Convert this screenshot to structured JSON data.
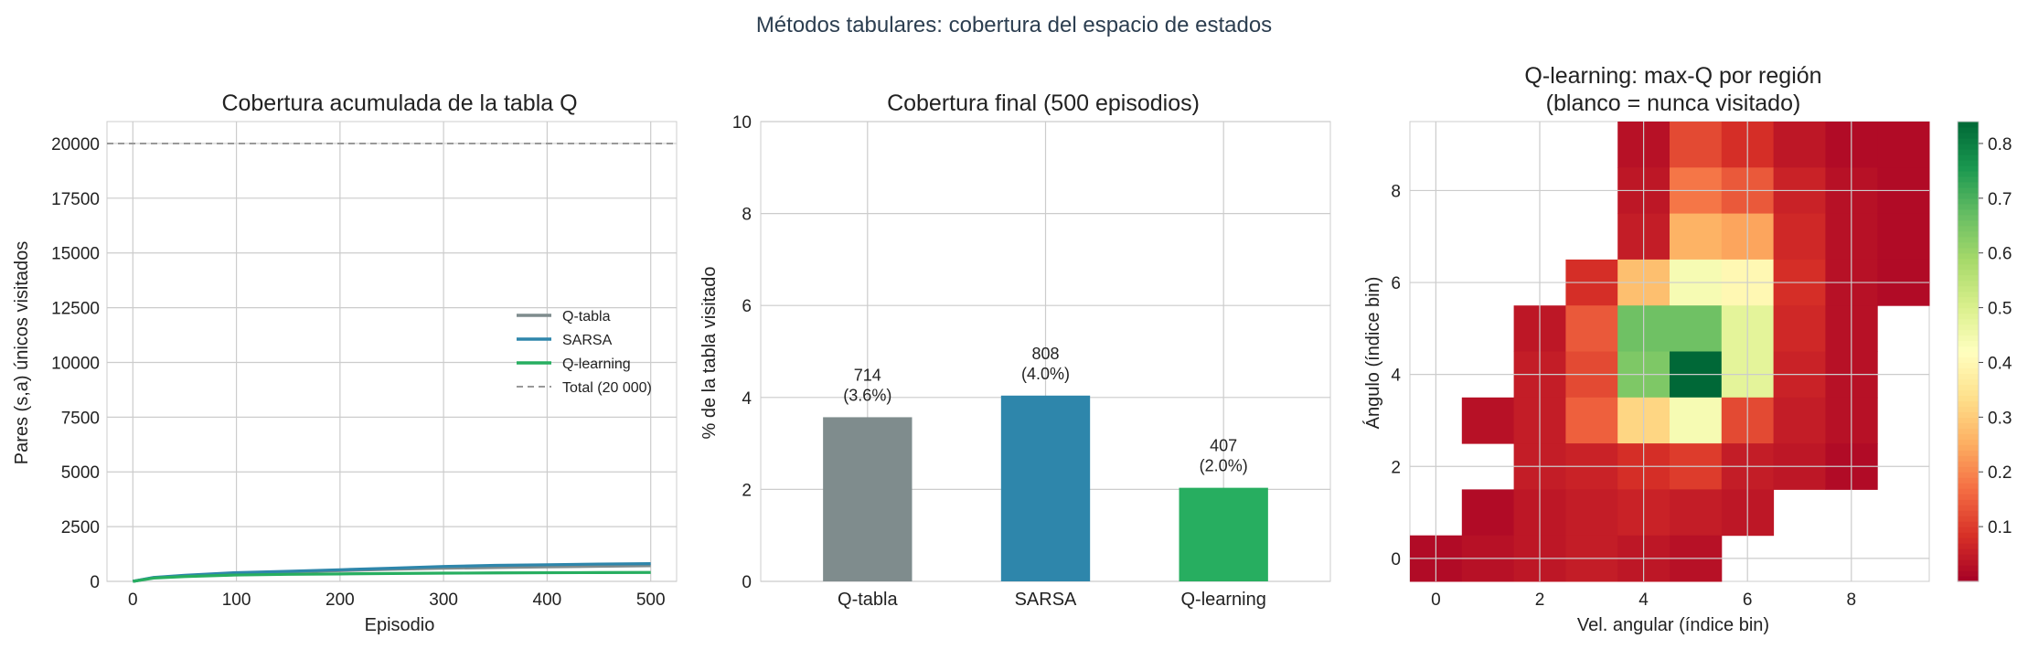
{
  "suptitle": "Métodos tabulares: cobertura del espacio de estados",
  "colors": {
    "qtabla": "#7f8c8d",
    "sarsa": "#2e86ab",
    "qlearning": "#27ae60",
    "total_line": "#999999",
    "grid": "#cccccc",
    "title_text": "#2c3e50"
  },
  "chart_data": [
    {
      "type": "line",
      "title": "Cobertura acumulada de la tabla Q",
      "xlabel": "Episodio",
      "ylabel": "Pares (s,a) únicos visitados",
      "xlim": [
        -25,
        525
      ],
      "ylim": [
        0,
        21000
      ],
      "x_ticks": [
        0,
        100,
        200,
        300,
        400,
        500
      ],
      "y_ticks": [
        0,
        2500,
        5000,
        7500,
        10000,
        12500,
        15000,
        17500,
        20000
      ],
      "grid": true,
      "legend_position": "center-right",
      "series": [
        {
          "name": "Q-tabla",
          "color": "#7f8c8d",
          "x": [
            0,
            20,
            50,
            100,
            150,
            200,
            250,
            300,
            350,
            400,
            450,
            500
          ],
          "y": [
            0,
            170,
            260,
            380,
            430,
            490,
            550,
            600,
            630,
            660,
            690,
            714
          ]
        },
        {
          "name": "SARSA",
          "color": "#2e86ab",
          "x": [
            0,
            20,
            50,
            100,
            150,
            200,
            250,
            300,
            350,
            400,
            450,
            500
          ],
          "y": [
            0,
            180,
            280,
            400,
            460,
            530,
            600,
            680,
            730,
            760,
            790,
            808
          ]
        },
        {
          "name": "Q-learning",
          "color": "#27ae60",
          "x": [
            0,
            20,
            50,
            100,
            150,
            200,
            250,
            300,
            350,
            400,
            450,
            500
          ],
          "y": [
            0,
            150,
            220,
            290,
            320,
            340,
            360,
            375,
            385,
            395,
            402,
            407
          ]
        }
      ],
      "hline": {
        "name": "Total (20 000)",
        "y": 20000,
        "style": "dashed"
      }
    },
    {
      "type": "bar",
      "title": "Cobertura final (500 episodios)",
      "xlabel": "",
      "ylabel": "% de la tabla visitado",
      "ylim": [
        0,
        10
      ],
      "y_ticks": [
        0,
        2,
        4,
        6,
        8,
        10
      ],
      "grid": true,
      "categories": [
        "Q-tabla",
        "SARSA",
        "Q-learning"
      ],
      "values": [
        3.57,
        4.04,
        2.035
      ],
      "bar_colors": [
        "#7f8c8d",
        "#2e86ab",
        "#27ae60"
      ],
      "labels": [
        [
          "714",
          "(3.6%)"
        ],
        [
          "808",
          "(4.0%)"
        ],
        [
          "407",
          "(2.0%)"
        ]
      ]
    },
    {
      "type": "heatmap",
      "title": "Q-learning: max-Q por región",
      "subtitle": "(blanco = nunca visitado)",
      "xlabel": "Vel. angular (índice bin)",
      "ylabel": "Ángulo (índice bin)",
      "xlim": [
        -0.5,
        9.5
      ],
      "ylim": [
        -0.5,
        9.5
      ],
      "x_ticks": [
        0,
        2,
        4,
        6,
        8
      ],
      "y_ticks": [
        0,
        2,
        4,
        6,
        8
      ],
      "colormap": "RdYlGn",
      "colorbar_range": [
        0.0,
        0.84
      ],
      "colorbar_ticks": [
        0.1,
        0.2,
        0.3,
        0.4,
        0.5,
        0.6,
        0.7,
        0.8
      ],
      "grid": true,
      "rows_top_to_bottom": [
        [
          null,
          null,
          null,
          null,
          0.03,
          0.12,
          0.08,
          0.04,
          0.02,
          0.02
        ],
        [
          null,
          null,
          null,
          null,
          0.04,
          0.18,
          0.14,
          0.06,
          0.03,
          0.02
        ],
        [
          null,
          null,
          null,
          null,
          0.05,
          0.26,
          0.24,
          0.07,
          0.03,
          0.02
        ],
        [
          null,
          null,
          null,
          0.08,
          0.28,
          0.44,
          0.4,
          0.08,
          0.03,
          0.02
        ],
        [
          null,
          null,
          0.04,
          0.14,
          0.66,
          0.66,
          0.48,
          0.07,
          0.03,
          null
        ],
        [
          null,
          null,
          0.05,
          0.12,
          0.64,
          0.84,
          0.48,
          0.06,
          0.03,
          null
        ],
        [
          null,
          0.03,
          0.05,
          0.15,
          0.32,
          0.44,
          0.12,
          0.05,
          0.03,
          null
        ],
        [
          null,
          null,
          0.05,
          0.06,
          0.08,
          0.1,
          0.05,
          0.04,
          0.02,
          null
        ],
        [
          null,
          0.02,
          0.04,
          0.05,
          0.06,
          0.05,
          0.04,
          null,
          null,
          null
        ],
        [
          0.02,
          0.03,
          0.04,
          0.05,
          0.04,
          0.03,
          null,
          null,
          null,
          null
        ]
      ]
    }
  ]
}
